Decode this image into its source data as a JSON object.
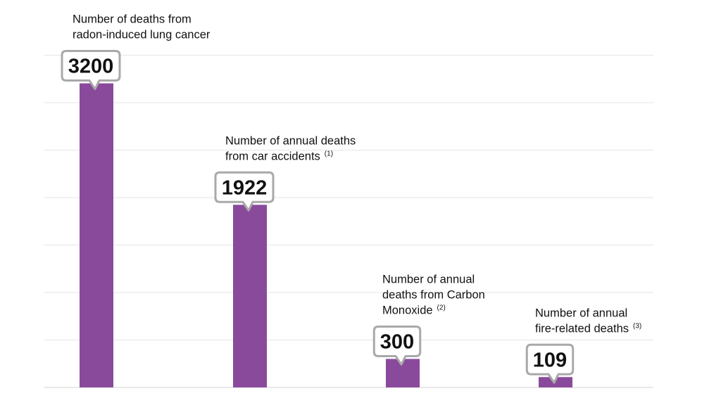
{
  "chart_data": {
    "type": "bar",
    "categories": [
      {
        "lines": [
          "Number of deaths from",
          "radon-induced lung cancer"
        ],
        "note": ""
      },
      {
        "lines": [
          "Number of annual deaths",
          "from car accidents"
        ],
        "note": "(1)"
      },
      {
        "lines": [
          "Number of annual",
          "deaths from Carbon",
          "Monoxide"
        ],
        "note": "(2)"
      },
      {
        "lines": [
          "Number of annual",
          "fire-related deaths"
        ],
        "note": "(3)"
      }
    ],
    "values": [
      3200,
      1922,
      300,
      109
    ],
    "value_labels": [
      "3200",
      "1922",
      "300",
      "109"
    ],
    "ylim": [
      0,
      3500
    ],
    "grid": true,
    "colors": {
      "bar": "#8a4a9c",
      "gridline": "#e6e6e6",
      "callout_border": "#a9a9a9"
    }
  }
}
